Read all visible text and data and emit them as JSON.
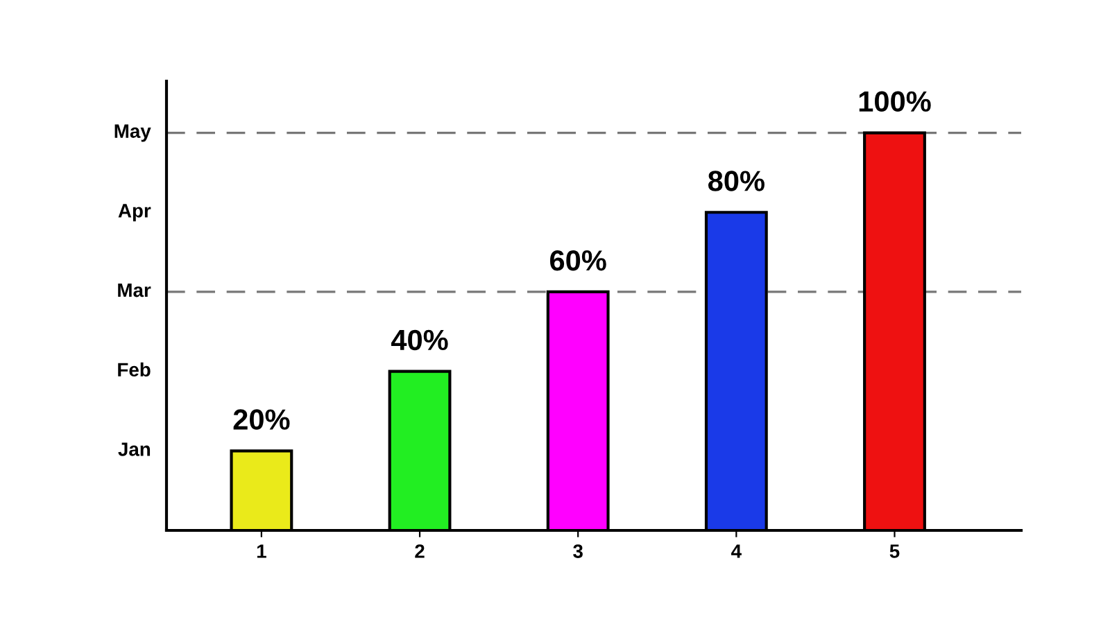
{
  "chart_data": {
    "type": "bar",
    "categories": [
      "1",
      "2",
      "3",
      "4",
      "5"
    ],
    "values": [
      20,
      40,
      60,
      80,
      100
    ],
    "colors": [
      "#eaea1a",
      "#22ee22",
      "#ff00ff",
      "#1a3ae8",
      "#ee1111"
    ],
    "value_labels": [
      "20%",
      "40%",
      "60%",
      "80%",
      "100%"
    ],
    "annotations": [
      "Jan",
      "Feb",
      "Mar",
      "Apr",
      "May"
    ],
    "ref_lines": [
      {
        "axis": "y",
        "value": 100,
        "label": null,
        "color": "#777777",
        "line_style": "dashed"
      },
      {
        "axis": "y",
        "value": 60,
        "label": null,
        "color": "#777777",
        "line_style": "dashed"
      }
    ],
    "grid": false,
    "legend": false
  }
}
